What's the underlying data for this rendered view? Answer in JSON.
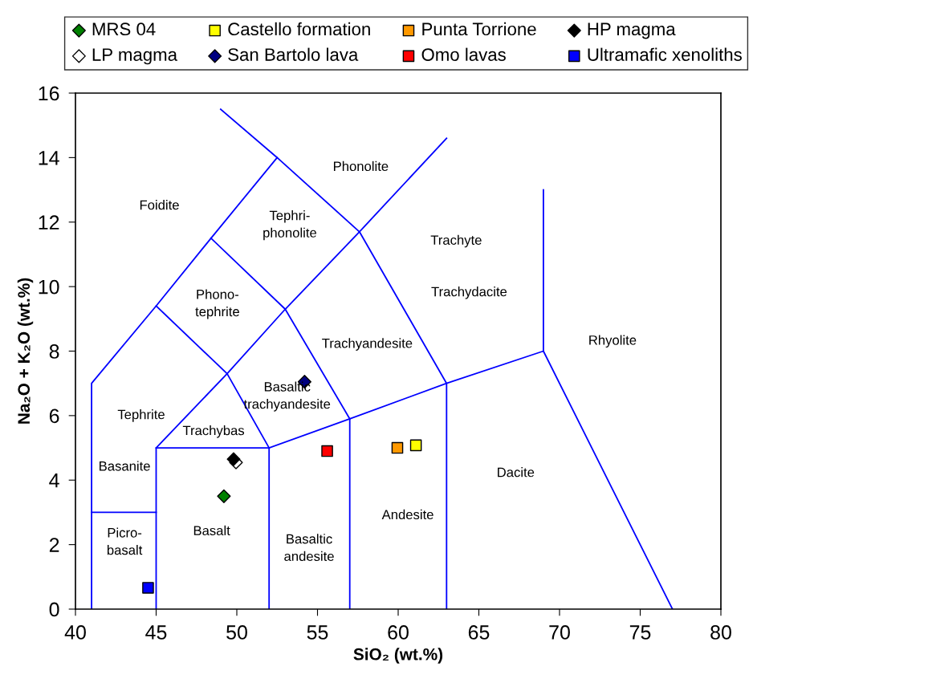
{
  "chart_data": {
    "type": "scatter",
    "xlabel": "SiO₂ (wt.%)",
    "ylabel": "Na₂O + K₂O (wt.%)",
    "xlim": [
      40,
      80
    ],
    "ylim": [
      0,
      16
    ],
    "xticks": [
      40,
      45,
      50,
      55,
      60,
      65,
      70,
      75,
      80
    ],
    "yticks": [
      0,
      2,
      4,
      6,
      8,
      10,
      12,
      14,
      16
    ],
    "grid": false,
    "legend": "top",
    "series": [
      {
        "name": "MRS 04",
        "marker": "diamond",
        "color": "#008000",
        "x": [
          49.2
        ],
        "values": [
          3.5
        ]
      },
      {
        "name": "Castello formation",
        "marker": "square",
        "color": "#ffff00",
        "x": [
          61.1
        ],
        "values": [
          5.08
        ]
      },
      {
        "name": "Punta Torrione",
        "marker": "square",
        "color": "#ff9900",
        "x": [
          59.95
        ],
        "values": [
          5.0
        ]
      },
      {
        "name": "HP magma",
        "marker": "diamond",
        "color": "#000000",
        "x": [
          49.8
        ],
        "values": [
          4.65
        ]
      },
      {
        "name": "LP magma",
        "marker": "diamond",
        "color": "#ffffff",
        "x": [
          49.95
        ],
        "values": [
          4.55
        ]
      },
      {
        "name": "San Bartolo lava",
        "marker": "diamond",
        "color": "#000080",
        "x": [
          54.2
        ],
        "values": [
          7.05
        ]
      },
      {
        "name": "Omo lavas",
        "marker": "square",
        "color": "#ff0000",
        "x": [
          55.6
        ],
        "values": [
          4.9
        ]
      },
      {
        "name": "Ultramafic xenoliths",
        "marker": "square",
        "color": "#0000ff",
        "x": [
          44.5
        ],
        "values": [
          0.66
        ]
      },
      {
        "type": "line",
        "color": "#0000ff",
        "x": [
          41,
          41,
          45,
          48.4,
          52.5,
          57.6,
          63,
          63
        ],
        "values": [
          0,
          7,
          9.4,
          11.5,
          14,
          11.7,
          7,
          0
        ]
      },
      {
        "type": "line",
        "color": "#0000ff",
        "x": [
          49,
          52.5
        ],
        "values": [
          15.5,
          14
        ]
      },
      {
        "type": "line",
        "color": "#0000ff",
        "x": [
          41,
          45
        ],
        "values": [
          3,
          3
        ]
      },
      {
        "type": "line",
        "color": "#0000ff",
        "x": [
          45,
          45,
          49.4,
          53,
          57.6,
          63
        ],
        "values": [
          0,
          5,
          7.3,
          9.3,
          11.7,
          14.6
        ]
      },
      {
        "type": "line",
        "color": "#0000ff",
        "x": [
          45,
          52,
          52
        ],
        "values": [
          5,
          5,
          0
        ]
      },
      {
        "type": "line",
        "color": "#0000ff",
        "x": [
          52,
          57,
          63,
          69,
          77
        ],
        "values": [
          5,
          5.9,
          7,
          8,
          0
        ]
      },
      {
        "type": "line",
        "color": "#0000ff",
        "x": [
          57,
          57
        ],
        "values": [
          0,
          5.9
        ]
      },
      {
        "type": "line",
        "color": "#0000ff",
        "x": [
          45,
          49.4,
          52
        ],
        "values": [
          9.4,
          7.3,
          5
        ]
      },
      {
        "type": "line",
        "color": "#0000ff",
        "x": [
          48.4,
          53,
          57
        ],
        "values": [
          11.5,
          9.3,
          5.9
        ]
      },
      {
        "type": "line",
        "color": "#0000ff",
        "x": [
          69,
          69
        ],
        "values": [
          8,
          13
        ]
      }
    ],
    "annotations": [
      "Foidite",
      "Phonolite",
      "Tephri-\nphonolite",
      "Trachyte",
      "Trachydacite",
      "Phono-\ntephrite",
      "Trachyandesite",
      "Rhyolite",
      "Basaltic\ntrachyandesite",
      "Tephrite",
      "Trachybas",
      "Basanite",
      "Dacite",
      "Andesite",
      "Picro-\nbasalt",
      "Basalt",
      "Basaltic\nandesite"
    ]
  }
}
